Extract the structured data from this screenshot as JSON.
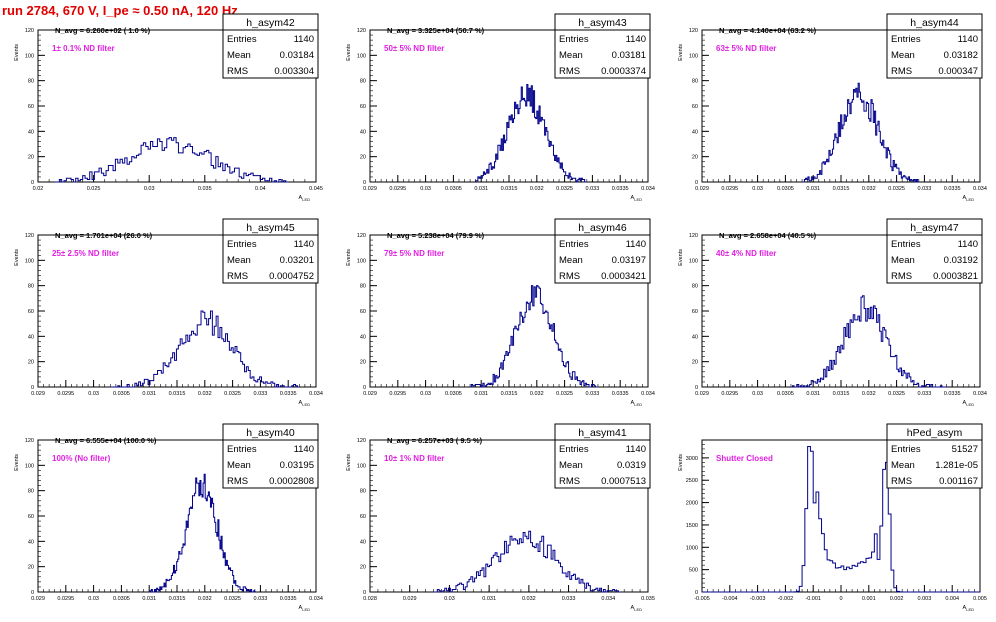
{
  "page_title": "run 2784,   670 V, I_pe ≈ 0.50 nA, 120 Hz",
  "stat_labels": {
    "entries": "Entries",
    "mean": "Mean",
    "rms": "RMS"
  },
  "axis_label": "A_LED",
  "y_axis_title": "Events",
  "colors": {
    "title": "#e00000",
    "annotation": "#e020e0",
    "histogram": "#00008b",
    "axis": "#000000"
  },
  "chart_data": [
    {
      "type": "histogram",
      "name": "h_asym42",
      "nevt_text": "N_avg = 6.260e+02 ( 1.0 %)",
      "filter_text": "1± 0.1% ND filter",
      "entries": "1140",
      "mean": "0.03184",
      "rms": "0.003304",
      "xlim": [
        0.02,
        0.045
      ],
      "ylim": [
        0,
        120
      ],
      "xticks": [
        "0.02",
        "0.025",
        "0.03",
        "0.035",
        "0.04",
        "0.045"
      ],
      "yticks": [
        "0",
        "20",
        "40",
        "60",
        "80",
        "100",
        "120"
      ],
      "gen": {
        "mu": 0.0318,
        "sigma": 0.0037,
        "peak": 30,
        "lo": 0.0215,
        "hi": 0.0425,
        "bins": 100,
        "seed": 42
      }
    },
    {
      "type": "histogram",
      "name": "h_asym43",
      "nevt_text": "N_avg = 3.325e+04 (50.7 %)",
      "filter_text": "50± 5% ND filter",
      "entries": "1140",
      "mean": "0.03181",
      "rms": "0.0003374",
      "xlim": [
        0.029,
        0.034
      ],
      "ylim": [
        0,
        120
      ],
      "xticks": [
        "0.029",
        "0.0295",
        "0.03",
        "0.0305",
        "0.031",
        "0.0315",
        "0.032",
        "0.0325",
        "0.033",
        "0.0335",
        "0.034"
      ],
      "yticks": [
        "0",
        "20",
        "40",
        "60",
        "80",
        "100",
        "120"
      ],
      "gen": {
        "mu": 0.03181,
        "sigma": 0.00034,
        "peak": 68,
        "lo": 0.0309,
        "hi": 0.0329,
        "bins": 100,
        "seed": 43
      }
    },
    {
      "type": "histogram",
      "name": "h_asym44",
      "nevt_text": "N_avg = 4.140e+04 (63.2 %)",
      "filter_text": "63± 5% ND filter",
      "entries": "1140",
      "mean": "0.03182",
      "rms": "0.000347",
      "xlim": [
        0.029,
        0.034
      ],
      "ylim": [
        0,
        120
      ],
      "xticks": [
        "0.029",
        "0.0295",
        "0.03",
        "0.0305",
        "0.031",
        "0.0315",
        "0.032",
        "0.0325",
        "0.033",
        "0.0335",
        "0.034"
      ],
      "yticks": [
        "0",
        "20",
        "40",
        "60",
        "80",
        "100",
        "120"
      ],
      "gen": {
        "mu": 0.03182,
        "sigma": 0.00034,
        "peak": 70,
        "lo": 0.0308,
        "hi": 0.0329,
        "bins": 100,
        "seed": 44
      }
    },
    {
      "type": "histogram",
      "name": "h_asym45",
      "nevt_text": "N_avg = 1.701e+04 (26.0 %)",
      "filter_text": "25± 2.5% ND filter",
      "entries": "1140",
      "mean": "0.03201",
      "rms": "0.0004752",
      "xlim": [
        0.029,
        0.034
      ],
      "ylim": [
        0,
        120
      ],
      "xticks": [
        "0.029",
        "0.0295",
        "0.03",
        "0.0305",
        "0.031",
        "0.0315",
        "0.032",
        "0.0325",
        "0.033",
        "0.0335",
        "0.034"
      ],
      "yticks": [
        "0",
        "20",
        "40",
        "60",
        "80",
        "100",
        "120"
      ],
      "gen": {
        "mu": 0.03201,
        "sigma": 0.00047,
        "peak": 52,
        "lo": 0.0303,
        "hi": 0.0337,
        "bins": 100,
        "seed": 45
      }
    },
    {
      "type": "histogram",
      "name": "h_asym46",
      "nevt_text": "N_avg = 5.238e+04 (79.9 %)",
      "filter_text": "79± 5% ND filter",
      "entries": "1140",
      "mean": "0.03197",
      "rms": "0.0003421",
      "xlim": [
        0.029,
        0.034
      ],
      "ylim": [
        0,
        120
      ],
      "xticks": [
        "0.029",
        "0.0295",
        "0.03",
        "0.0305",
        "0.031",
        "0.0315",
        "0.032",
        "0.0325",
        "0.033",
        "0.0335",
        "0.034"
      ],
      "yticks": [
        "0",
        "20",
        "40",
        "60",
        "80",
        "100",
        "120"
      ],
      "gen": {
        "mu": 0.03197,
        "sigma": 0.00034,
        "peak": 70,
        "lo": 0.0308,
        "hi": 0.0331,
        "bins": 100,
        "seed": 46
      }
    },
    {
      "type": "histogram",
      "name": "h_asym47",
      "nevt_text": "N_avg = 2.658e+04 (40.5 %)",
      "filter_text": "40± 4% ND filter",
      "entries": "1140",
      "mean": "0.03192",
      "rms": "0.0003821",
      "xlim": [
        0.029,
        0.034
      ],
      "ylim": [
        0,
        120
      ],
      "xticks": [
        "0.029",
        "0.0295",
        "0.03",
        "0.0305",
        "0.031",
        "0.0315",
        "0.032",
        "0.0325",
        "0.033",
        "0.0335",
        "0.034"
      ],
      "yticks": [
        "0",
        "20",
        "40",
        "60",
        "80",
        "100",
        "120"
      ],
      "gen": {
        "mu": 0.03192,
        "sigma": 0.00038,
        "peak": 62,
        "lo": 0.0306,
        "hi": 0.0334,
        "bins": 100,
        "seed": 47
      }
    },
    {
      "type": "histogram",
      "name": "h_asym40",
      "nevt_text": "N_avg = 6.555e+04 (100.0 %)",
      "filter_text": "100% (No filter)",
      "entries": "1140",
      "mean": "0.03195",
      "rms": "0.0002808",
      "xlim": [
        0.029,
        0.034
      ],
      "ylim": [
        0,
        120
      ],
      "xticks": [
        "0.029",
        "0.0295",
        "0.03",
        "0.0305",
        "0.031",
        "0.0315",
        "0.032",
        "0.0325",
        "0.033",
        "0.0335",
        "0.034"
      ],
      "yticks": [
        "0",
        "20",
        "40",
        "60",
        "80",
        "100",
        "120"
      ],
      "gen": {
        "mu": 0.03195,
        "sigma": 0.00028,
        "peak": 85,
        "lo": 0.031,
        "hi": 0.0329,
        "bins": 100,
        "seed": 40
      }
    },
    {
      "type": "histogram",
      "name": "h_asym41",
      "nevt_text": "N_avg = 6.257e+03 ( 9.5 %)",
      "filter_text": "10± 1% ND filter",
      "entries": "1140",
      "mean": "0.0319",
      "rms": "0.0007513",
      "xlim": [
        0.028,
        0.035
      ],
      "ylim": [
        0,
        120
      ],
      "xticks": [
        "0.028",
        "0.029",
        "0.03",
        "0.031",
        "0.032",
        "0.033",
        "0.034",
        "0.035"
      ],
      "yticks": [
        "0",
        "20",
        "40",
        "60",
        "80",
        "100",
        "120"
      ],
      "gen": {
        "mu": 0.0319,
        "sigma": 0.00075,
        "peak": 44,
        "lo": 0.0296,
        "hi": 0.0343,
        "bins": 100,
        "seed": 41
      }
    },
    {
      "type": "histogram",
      "name": "hPed_asym",
      "nevt_text": "",
      "filter_text": "Shutter Closed",
      "entries": "51527",
      "mean": "1.281e-05",
      "rms": "0.001167",
      "xlim": [
        -0.005,
        0.005
      ],
      "ylim": [
        0,
        3400
      ],
      "xticks": [
        "-0.005",
        "-0.004",
        "-0.003",
        "-0.002",
        "-0.001",
        "0",
        "0.001",
        "0.002",
        "0.003",
        "0.004",
        "0.005"
      ],
      "yticks": [
        "0",
        "500",
        "1000",
        "1500",
        "2000",
        "2500",
        "3000"
      ],
      "gen": {
        "bimodal": true,
        "seed": 99
      }
    }
  ]
}
